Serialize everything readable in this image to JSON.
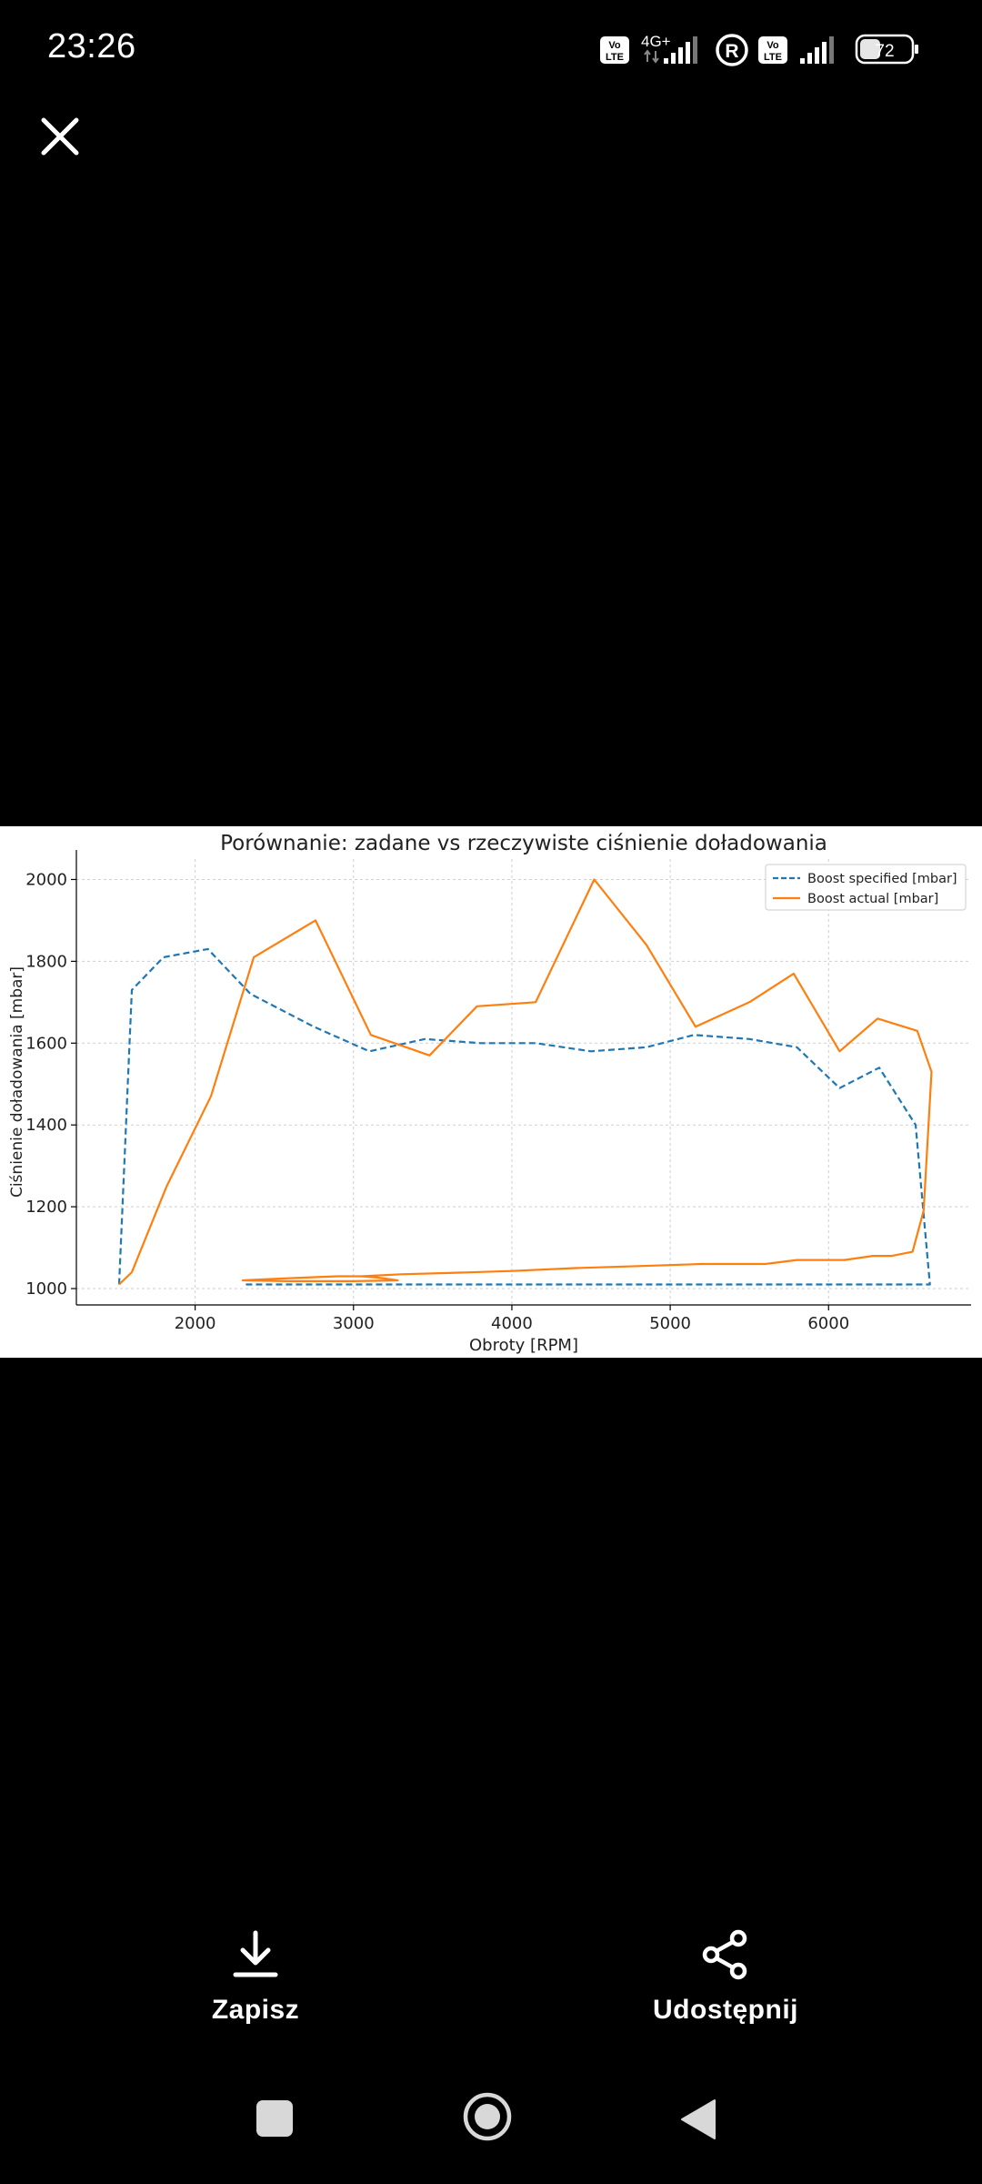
{
  "status_bar": {
    "time": "23:26",
    "network": "4G+",
    "volte_1": "Vo\nLTE",
    "volte_2": "Vo\nLTE",
    "battery": "72"
  },
  "viewer": {
    "close_icon": "close-icon"
  },
  "chart_data": {
    "type": "line",
    "title": "Porównanie: zadane vs rzeczywiste ciśnienie doładowania",
    "xlabel": "Obroty [RPM]",
    "ylabel": "Ciśnienie doładowania [mbar]",
    "xlim": [
      1250,
      6900
    ],
    "ylim": [
      960,
      2050
    ],
    "xticks": [
      2000,
      3000,
      4000,
      5000,
      6000
    ],
    "yticks": [
      1000,
      1200,
      1400,
      1600,
      1800,
      2000
    ],
    "grid": true,
    "legend_position": "top-right",
    "series": [
      {
        "name": "Boost specified [mbar]",
        "color": "#1f77b4",
        "style": "dashed",
        "points": [
          [
            1520,
            1010
          ],
          [
            1600,
            1730
          ],
          [
            1800,
            1810
          ],
          [
            2080,
            1830
          ],
          [
            2350,
            1720
          ],
          [
            2750,
            1640
          ],
          [
            3100,
            1580
          ],
          [
            3450,
            1610
          ],
          [
            3800,
            1600
          ],
          [
            4150,
            1600
          ],
          [
            4500,
            1580
          ],
          [
            4850,
            1590
          ],
          [
            5150,
            1620
          ],
          [
            5500,
            1610
          ],
          [
            5800,
            1590
          ],
          [
            6070,
            1490
          ],
          [
            6320,
            1540
          ],
          [
            6550,
            1400
          ],
          [
            6640,
            1010
          ],
          [
            6400,
            1010
          ],
          [
            5000,
            1010
          ],
          [
            4000,
            1010
          ],
          [
            3000,
            1010
          ],
          [
            2300,
            1010
          ]
        ]
      },
      {
        "name": "Boost actual [mbar]",
        "color": "#ff7f0e",
        "style": "solid",
        "points": [
          [
            1520,
            1010
          ],
          [
            1600,
            1040
          ],
          [
            1820,
            1250
          ],
          [
            2100,
            1470
          ],
          [
            2370,
            1810
          ],
          [
            2760,
            1900
          ],
          [
            3110,
            1620
          ],
          [
            3480,
            1570
          ],
          [
            3780,
            1690
          ],
          [
            4150,
            1700
          ],
          [
            4520,
            2000
          ],
          [
            4850,
            1840
          ],
          [
            5160,
            1640
          ],
          [
            5500,
            1700
          ],
          [
            5780,
            1770
          ],
          [
            6070,
            1580
          ],
          [
            6310,
            1660
          ],
          [
            6560,
            1630
          ],
          [
            6650,
            1530
          ],
          [
            6600,
            1190
          ],
          [
            6530,
            1090
          ],
          [
            6400,
            1080
          ],
          [
            6280,
            1080
          ],
          [
            6100,
            1070
          ],
          [
            5800,
            1070
          ],
          [
            5600,
            1060
          ],
          [
            5200,
            1060
          ],
          [
            4800,
            1055
          ],
          [
            4400,
            1050
          ],
          [
            4000,
            1043
          ],
          [
            3600,
            1038
          ],
          [
            3300,
            1035
          ],
          [
            3050,
            1030
          ],
          [
            2900,
            1030
          ],
          [
            2700,
            1027
          ],
          [
            2450,
            1023
          ],
          [
            2300,
            1020
          ],
          [
            2600,
            1018
          ],
          [
            3000,
            1018
          ],
          [
            3280,
            1020
          ],
          [
            3150,
            1027
          ],
          [
            3050,
            1030
          ]
        ]
      }
    ]
  },
  "actions": {
    "save_label": "Zapisz",
    "share_label": "Udostępnij"
  },
  "nav": {
    "recent_icon": "square-icon",
    "home_icon": "circle-icon",
    "back_icon": "triangle-back-icon"
  }
}
